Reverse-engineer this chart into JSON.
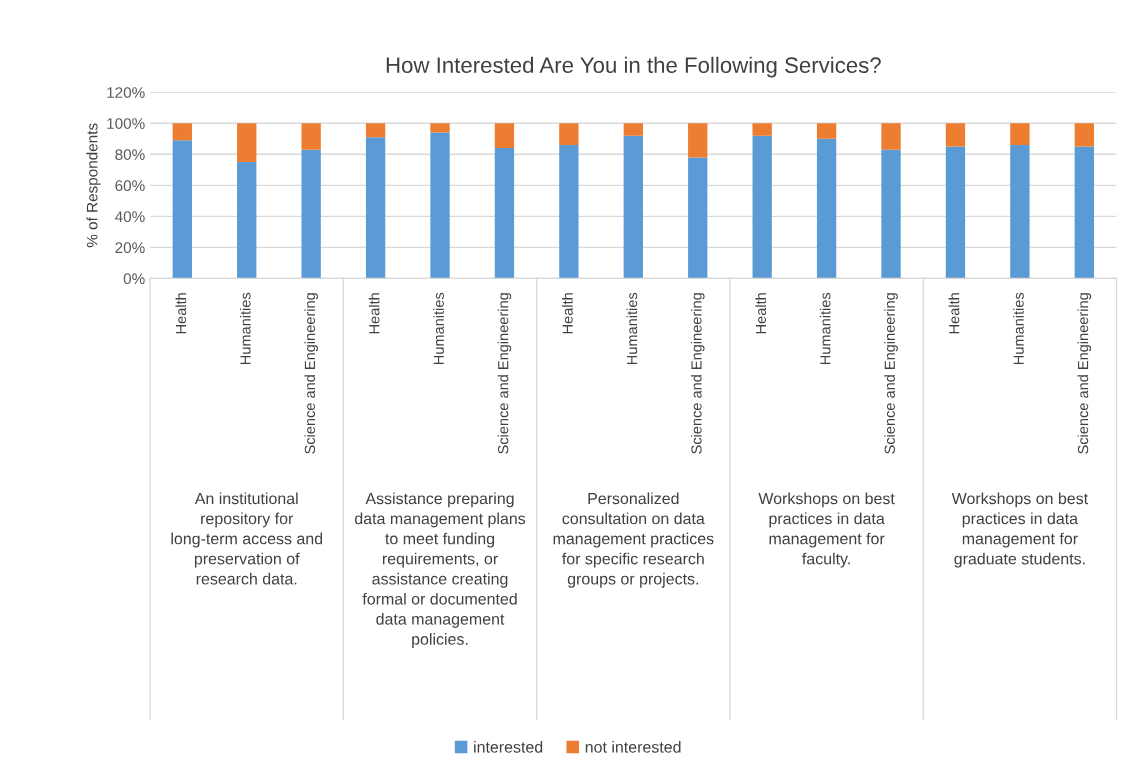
{
  "chart_data": {
    "type": "bar",
    "title": "How Interested Are You in the Following Services?",
    "ylabel": "% of Respondents",
    "categories": [
      "Health",
      "Humanities",
      "Science and Engineering",
      "Health",
      "Humanities",
      "Science and Engineering",
      "Health",
      "Humanities",
      "Science and Engineering",
      "Health",
      "Humanities",
      "Science and Engineering",
      "Health",
      "Humanities",
      "Science and Engineering"
    ],
    "stacked": true,
    "series": [
      {
        "name": "interested",
        "color": "#5b9bd5",
        "values": [
          89,
          75,
          83,
          91,
          94,
          84,
          86,
          92,
          78,
          92,
          90,
          83,
          85,
          86,
          85
        ]
      },
      {
        "name": "not interested",
        "color": "#ed7d31",
        "values": [
          11,
          25,
          17,
          9,
          6,
          16,
          14,
          8,
          22,
          8,
          10,
          17,
          15,
          14,
          15
        ]
      }
    ],
    "annotations": [
      "An institutional repository for long-term access and preservation of research data.",
      "Assistance preparing data management plans to meet funding requirements, or assistance creating formal or documented data management policies.",
      "Personalized consultation on data management practices for specific research groups or projects.",
      "Workshops on best practices in data management for faculty.",
      "Workshops on best practices in data management for graduate students."
    ],
    "ylim": [
      0,
      120
    ],
    "yticks": [
      {
        "value": 0,
        "label": "0%"
      },
      {
        "value": 20,
        "label": "20%"
      },
      {
        "value": 40,
        "label": "40%"
      },
      {
        "value": 60,
        "label": "60%"
      },
      {
        "value": 80,
        "label": "80%"
      },
      {
        "value": 100,
        "label": "100%"
      },
      {
        "value": 120,
        "label": "120%"
      }
    ],
    "grid": "y",
    "legend": "bottom"
  }
}
